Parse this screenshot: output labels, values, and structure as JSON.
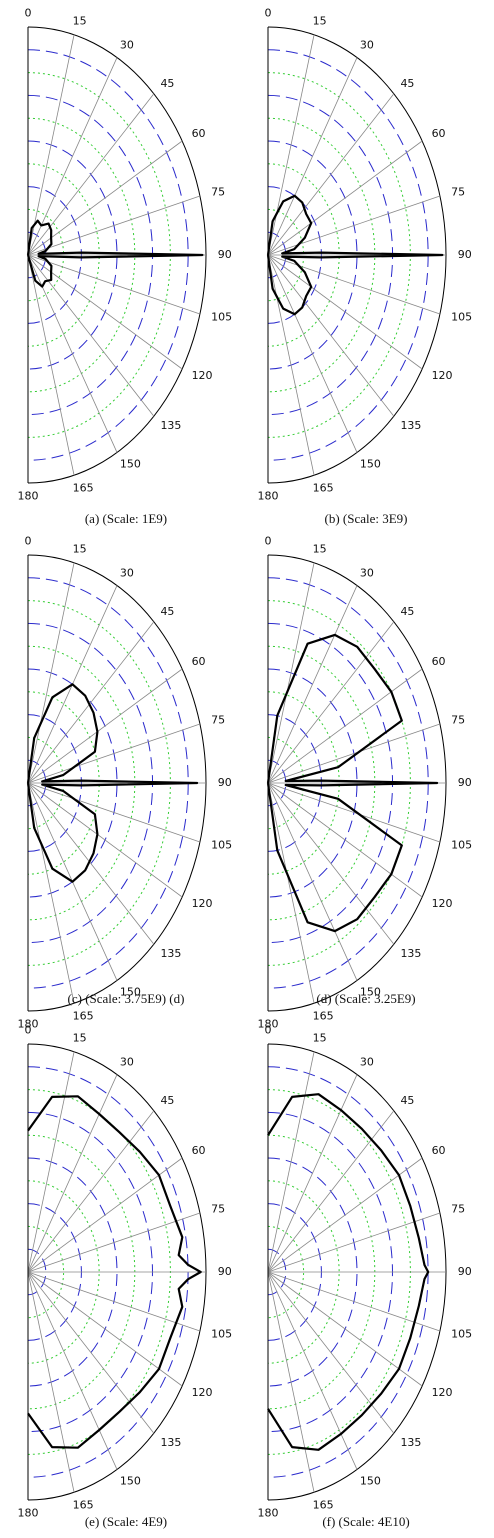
{
  "chart_data": [
    {
      "type": "polar",
      "caption": "(a) (Scale: 1E9)",
      "color": "#000000",
      "grid_colors": [
        "#2a2acc",
        "#33cc33"
      ],
      "x": [
        0,
        10,
        20,
        30,
        40,
        50,
        60,
        70,
        80,
        85,
        88,
        90,
        92,
        95,
        100,
        110,
        120,
        130,
        140,
        150,
        160,
        170,
        180
      ],
      "values": [
        0,
        0.12,
        0.16,
        0.15,
        0.18,
        0.17,
        0.15,
        0.14,
        0.1,
        0.06,
        0.3,
        0.98,
        0.3,
        0.06,
        0.1,
        0.14,
        0.15,
        0.17,
        0.15,
        0.16,
        0.12,
        0,
        0
      ],
      "xlim": [
        0,
        180
      ],
      "xticks": [
        0,
        15,
        30,
        45,
        60,
        75,
        90,
        105,
        120,
        135,
        150,
        165,
        180
      ],
      "rlim": [
        0,
        1
      ],
      "rticks": [
        0.1,
        0.2,
        0.3,
        0.4,
        0.5,
        0.6,
        0.7,
        0.8,
        0.9,
        1
      ]
    },
    {
      "type": "polar",
      "caption": "(b) (Scale: 3E9)",
      "color": "#000000",
      "grid_colors": [
        "#2a2acc",
        "#33cc33"
      ],
      "x": [
        0,
        10,
        20,
        30,
        40,
        50,
        60,
        70,
        80,
        85,
        88,
        90,
        92,
        95,
        100,
        110,
        120,
        130,
        140,
        150,
        160,
        170,
        180
      ],
      "values": [
        0,
        0.15,
        0.25,
        0.3,
        0.3,
        0.28,
        0.28,
        0.22,
        0.15,
        0.08,
        0.3,
        0.98,
        0.3,
        0.08,
        0.15,
        0.22,
        0.28,
        0.28,
        0.3,
        0.3,
        0.25,
        0.15,
        0
      ],
      "xlim": [
        0,
        180
      ],
      "xticks": [
        0,
        15,
        30,
        45,
        60,
        75,
        90,
        105,
        120,
        135,
        150,
        165,
        180
      ],
      "rlim": [
        0,
        1
      ],
      "rticks": [
        0.1,
        0.2,
        0.3,
        0.4,
        0.5,
        0.6,
        0.7,
        0.8,
        0.9,
        1
      ]
    },
    {
      "type": "polar",
      "caption": "(c) (Scale: 3.75E9) (d)",
      "color": "#000000",
      "grid_colors": [
        "#2a2acc",
        "#33cc33"
      ],
      "x": [
        0,
        10,
        20,
        30,
        40,
        50,
        60,
        70,
        80,
        85,
        88,
        90,
        92,
        95,
        100,
        110,
        120,
        130,
        140,
        150,
        160,
        170,
        180
      ],
      "values": [
        0,
        0.2,
        0.4,
        0.5,
        0.5,
        0.48,
        0.45,
        0.4,
        0.2,
        0.08,
        0.3,
        0.95,
        0.3,
        0.08,
        0.2,
        0.4,
        0.45,
        0.48,
        0.5,
        0.5,
        0.4,
        0.2,
        0
      ],
      "xlim": [
        0,
        180
      ],
      "xticks": [
        0,
        15,
        30,
        45,
        60,
        75,
        90,
        105,
        120,
        135,
        150,
        165,
        180
      ],
      "rlim": [
        0,
        1
      ],
      "rticks": [
        0.1,
        0.2,
        0.3,
        0.4,
        0.5,
        0.6,
        0.7,
        0.8,
        0.9,
        1
      ]
    },
    {
      "type": "polar",
      "caption": "(d) (Scale: 3.25E9)",
      "color": "#000000",
      "grid_colors": [
        "#2a2acc",
        "#33cc33"
      ],
      "x": [
        0,
        10,
        20,
        30,
        40,
        50,
        60,
        70,
        80,
        85,
        88,
        90,
        92,
        95,
        100,
        110,
        120,
        130,
        140,
        150,
        160,
        170,
        180
      ],
      "values": [
        0,
        0.3,
        0.65,
        0.75,
        0.78,
        0.78,
        0.8,
        0.8,
        0.4,
        0.1,
        0.3,
        0.95,
        0.3,
        0.1,
        0.4,
        0.8,
        0.8,
        0.78,
        0.78,
        0.75,
        0.65,
        0.3,
        0
      ],
      "xlim": [
        0,
        180
      ],
      "xticks": [
        0,
        15,
        30,
        45,
        60,
        75,
        90,
        105,
        120,
        135,
        150,
        165,
        180
      ],
      "rlim": [
        0,
        1
      ],
      "rticks": [
        0.1,
        0.2,
        0.3,
        0.4,
        0.5,
        0.6,
        0.7,
        0.8,
        0.9,
        1
      ]
    },
    {
      "type": "polar",
      "caption": "(e) (Scale: 4E9)",
      "color": "#000000",
      "grid_colors": [
        "#2a2acc",
        "#33cc33"
      ],
      "x": [
        0,
        10,
        20,
        30,
        40,
        50,
        60,
        70,
        80,
        85,
        88,
        90,
        92,
        95,
        100,
        110,
        120,
        130,
        140,
        150,
        160,
        170,
        180
      ],
      "values": [
        0.62,
        0.78,
        0.82,
        0.8,
        0.8,
        0.82,
        0.85,
        0.85,
        0.88,
        0.85,
        0.9,
        0.97,
        0.9,
        0.85,
        0.88,
        0.85,
        0.85,
        0.82,
        0.8,
        0.8,
        0.82,
        0.78,
        0.62
      ],
      "xlim": [
        0,
        180
      ],
      "xticks": [
        0,
        15,
        30,
        45,
        60,
        75,
        90,
        105,
        120,
        135,
        150,
        165,
        180
      ],
      "rlim": [
        0,
        1
      ],
      "rticks": [
        0.1,
        0.2,
        0.3,
        0.4,
        0.5,
        0.6,
        0.7,
        0.8,
        0.9,
        1
      ]
    },
    {
      "type": "polar",
      "caption": "(f) (Scale: 4E10)",
      "color": "#000000",
      "grid_colors": [
        "#2a2acc",
        "#33cc33"
      ],
      "x": [
        0,
        10,
        20,
        30,
        40,
        50,
        60,
        70,
        80,
        85,
        88,
        90,
        92,
        95,
        100,
        110,
        120,
        130,
        140,
        150,
        160,
        170,
        180
      ],
      "values": [
        0.6,
        0.78,
        0.83,
        0.82,
        0.82,
        0.83,
        0.85,
        0.85,
        0.86,
        0.87,
        0.88,
        0.9,
        0.88,
        0.87,
        0.86,
        0.85,
        0.85,
        0.83,
        0.82,
        0.82,
        0.83,
        0.78,
        0.6
      ],
      "xlim": [
        0,
        180
      ],
      "xticks": [
        0,
        15,
        30,
        45,
        60,
        75,
        90,
        105,
        120,
        135,
        150,
        165,
        180
      ],
      "rlim": [
        0,
        1
      ],
      "rticks": [
        0.1,
        0.2,
        0.3,
        0.4,
        0.5,
        0.6,
        0.7,
        0.8,
        0.9,
        1
      ]
    }
  ]
}
